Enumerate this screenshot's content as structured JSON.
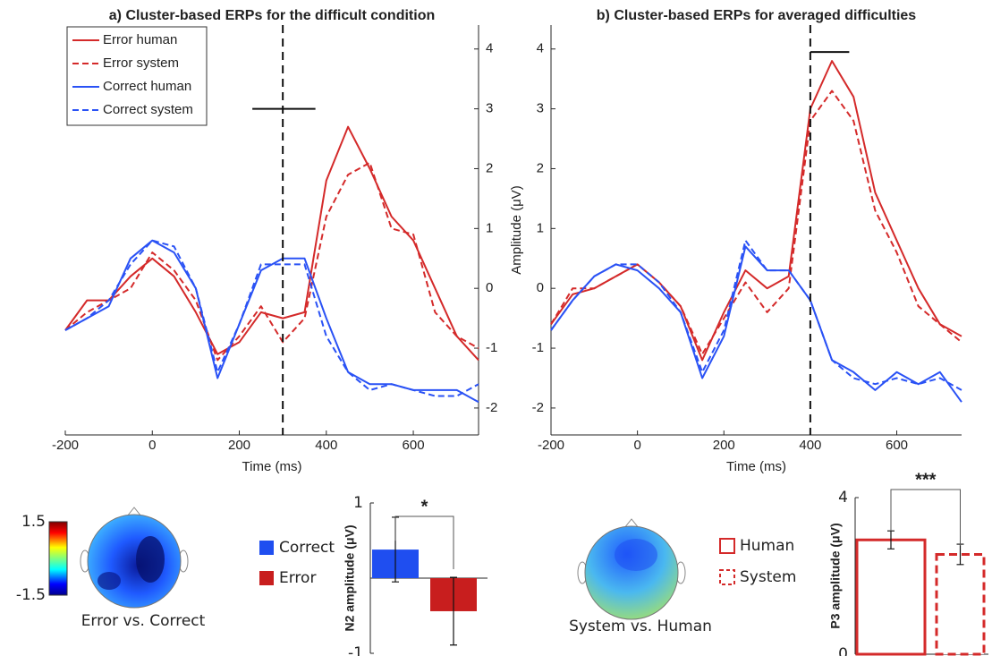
{
  "chart_data": [
    {
      "type": "line",
      "title": "a) Cluster-based ERPs for the difficult condition",
      "xlabel": "Time (ms)",
      "x": [
        -200,
        -150,
        -100,
        -50,
        0,
        50,
        100,
        150,
        200,
        250,
        300,
        350,
        400,
        450,
        500,
        550,
        600,
        650,
        700,
        750
      ],
      "series": [
        {
          "name": "Error human",
          "color": "#d42a2a",
          "style": "solid",
          "values": [
            -0.7,
            -0.2,
            -0.2,
            0.2,
            0.5,
            0.2,
            -0.4,
            -1.1,
            -0.9,
            -0.4,
            -0.5,
            -0.4,
            1.8,
            2.7,
            2.0,
            1.2,
            0.8,
            0.0,
            -0.8,
            -1.2
          ]
        },
        {
          "name": "Error system",
          "color": "#d42a2a",
          "style": "dashed",
          "values": [
            -0.7,
            -0.4,
            -0.2,
            0.0,
            0.6,
            0.3,
            -0.2,
            -1.2,
            -0.8,
            -0.3,
            -0.9,
            -0.5,
            1.2,
            1.9,
            2.1,
            1.0,
            0.9,
            -0.4,
            -0.8,
            -1.0
          ]
        },
        {
          "name": "Correct human",
          "color": "#2a52f5",
          "style": "solid",
          "values": [
            -0.7,
            -0.5,
            -0.3,
            0.5,
            0.8,
            0.6,
            0.0,
            -1.5,
            -0.6,
            0.3,
            0.5,
            0.5,
            -0.5,
            -1.4,
            -1.6,
            -1.6,
            -1.7,
            -1.7,
            -1.7,
            -1.9
          ]
        },
        {
          "name": "Correct system",
          "color": "#2a52f5",
          "style": "dashed",
          "values": [
            -0.7,
            -0.5,
            -0.2,
            0.4,
            0.8,
            0.7,
            0.0,
            -1.4,
            -0.6,
            0.4,
            0.4,
            0.4,
            -0.8,
            -1.4,
            -1.7,
            -1.6,
            -1.7,
            -1.8,
            -1.8,
            -1.6
          ]
        }
      ],
      "xlim": [
        -200,
        750
      ],
      "xticks": [
        -200,
        0,
        200,
        400,
        600
      ],
      "ylim": [
        -2.45,
        4.4
      ],
      "yticks": [
        -2,
        -1,
        0,
        1,
        2,
        3,
        4
      ],
      "y_axis_side": "right",
      "vline": 300,
      "hline": {
        "y": 3,
        "x": [
          230,
          375
        ]
      },
      "legend": "upper left"
    },
    {
      "type": "line",
      "title": "b) Cluster-based ERPs for averaged difficulties",
      "xlabel": "Time (ms)",
      "ylabel": "Amplitude (μV)",
      "x": [
        -200,
        -150,
        -100,
        -50,
        0,
        50,
        100,
        150,
        200,
        250,
        300,
        350,
        400,
        450,
        500,
        550,
        600,
        650,
        700,
        750
      ],
      "series": [
        {
          "name": "Error human",
          "color": "#d42a2a",
          "style": "solid",
          "values": [
            -0.6,
            -0.1,
            0.0,
            0.2,
            0.4,
            0.1,
            -0.3,
            -1.2,
            -0.4,
            0.3,
            0.0,
            0.2,
            3.0,
            3.8,
            3.2,
            1.6,
            0.8,
            0.0,
            -0.6,
            -0.8
          ]
        },
        {
          "name": "Error system",
          "color": "#d42a2a",
          "style": "dashed",
          "values": [
            -0.6,
            0.0,
            0.0,
            0.2,
            0.4,
            0.1,
            -0.3,
            -1.1,
            -0.5,
            0.1,
            -0.4,
            0.0,
            2.8,
            3.3,
            2.8,
            1.3,
            0.6,
            -0.3,
            -0.6,
            -0.9
          ]
        },
        {
          "name": "Correct human",
          "color": "#2a52f5",
          "style": "solid",
          "values": [
            -0.7,
            -0.2,
            0.2,
            0.4,
            0.3,
            0.0,
            -0.4,
            -1.5,
            -0.8,
            0.7,
            0.3,
            0.3,
            -0.2,
            -1.2,
            -1.4,
            -1.7,
            -1.4,
            -1.6,
            -1.4,
            -1.9
          ]
        },
        {
          "name": "Correct system",
          "color": "#2a52f5",
          "style": "dashed",
          "values": [
            -0.7,
            -0.2,
            0.2,
            0.4,
            0.4,
            0.1,
            -0.4,
            -1.4,
            -0.7,
            0.8,
            0.3,
            0.3,
            -0.2,
            -1.2,
            -1.5,
            -1.6,
            -1.5,
            -1.6,
            -1.5,
            -1.7
          ]
        }
      ],
      "xlim": [
        -200,
        750
      ],
      "xticks": [
        -200,
        0,
        200,
        400,
        600
      ],
      "ylim": [
        -2.45,
        4.4
      ],
      "yticks": [
        -2,
        -1,
        0,
        1,
        2,
        3,
        4
      ],
      "y_axis_side": "left",
      "vline": 400,
      "hline": {
        "y": 3.95,
        "x": [
          400,
          490
        ]
      }
    },
    {
      "type": "topomap",
      "caption": "Error vs. Correct",
      "clim": [
        -1.5,
        1.5
      ],
      "cticks": [
        1.5,
        -1.5
      ]
    },
    {
      "type": "bar",
      "ylabel": "N2 amplitude (μV)",
      "categories": [
        "Correct",
        "Error"
      ],
      "colors": [
        "#1f4ef0",
        "#c81e1e"
      ],
      "styles": [
        "filled",
        "filled"
      ],
      "values": [
        0.38,
        -0.44
      ],
      "errors": [
        0.43,
        0.45
      ],
      "ylim": [
        -1,
        1
      ],
      "yticks": [
        -1,
        1
      ],
      "significance": "*"
    },
    {
      "type": "topomap",
      "caption": "System vs. Human"
    },
    {
      "type": "bar",
      "ylabel": "P3 amplitude (μV)",
      "categories": [
        "Human",
        "System"
      ],
      "colors": [
        "#d42a2a",
        "#d42a2a"
      ],
      "styles": [
        "solid",
        "dashed"
      ],
      "values": [
        2.92,
        2.55
      ],
      "errors": [
        0.23,
        0.26
      ],
      "ylim": [
        0,
        4
      ],
      "yticks": [
        0,
        4
      ],
      "significance": "***"
    }
  ]
}
